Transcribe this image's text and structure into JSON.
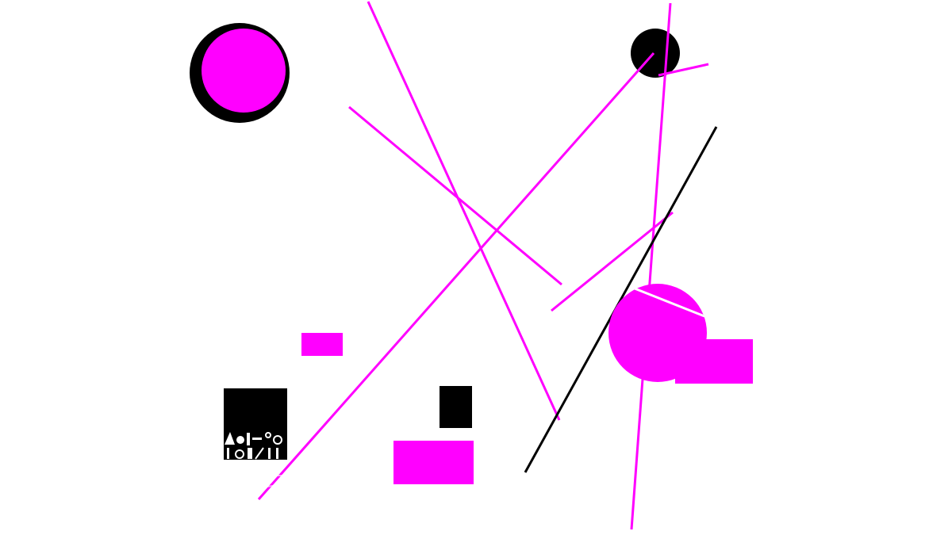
{
  "canvas": {
    "background": "#ffffff"
  },
  "palette": {
    "magenta": "#ff00ff",
    "black": "#000000",
    "white": "#ffffff"
  },
  "glyph_block": {
    "description_visible": false
  }
}
